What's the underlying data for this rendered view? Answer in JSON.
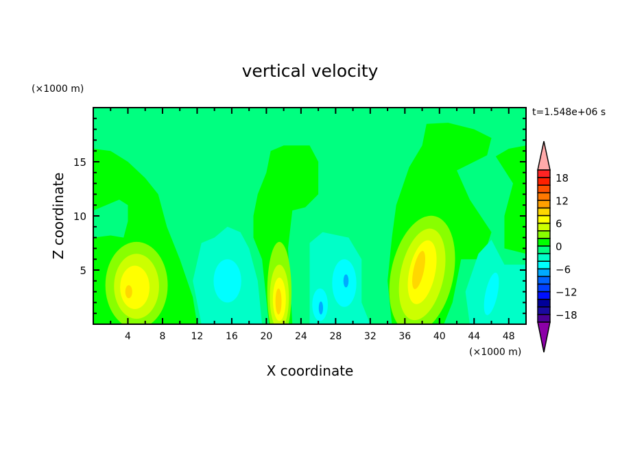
{
  "chart_data": {
    "type": "heatmap",
    "title": "vertical velocity",
    "xlabel": "X coordinate",
    "ylabel": "Z coordinate",
    "x_units": "(×1000 m)",
    "y_units": "(×1000 m)",
    "time_label": "t=1.548e+06 s",
    "xlim": [
      0,
      50
    ],
    "ylim": [
      0,
      20
    ],
    "x_ticks": [
      4,
      8,
      12,
      16,
      20,
      24,
      28,
      32,
      36,
      40,
      44,
      48
    ],
    "y_ticks": [
      5,
      10,
      15
    ],
    "background_level_color": "#00ff80",
    "colorbar": {
      "labels": [
        "18",
        "12",
        "6",
        "0",
        "-6",
        "-12",
        "-18"
      ],
      "over_color": "#ffaaaa",
      "under_color": "#8c00a8",
      "colors_top_to_bottom": [
        "#ff2424",
        "#ff2000",
        "#ff5000",
        "#ff7800",
        "#ffa000",
        "#ffd700",
        "#ffff00",
        "#ccff00",
        "#88ff00",
        "#00ff00",
        "#00ff80",
        "#00ffc8",
        "#00ffff",
        "#00aaff",
        "#0064ff",
        "#0040ff",
        "#0010ff",
        "#000099",
        "#1a0aa0",
        "#4b0096"
      ]
    },
    "regions": [
      {
        "color": "#00ff00",
        "pts": [
          [
            0,
            16.2
          ],
          [
            2,
            16
          ],
          [
            4,
            15
          ],
          [
            6,
            13.5
          ],
          [
            7.5,
            12
          ],
          [
            8.5,
            9
          ],
          [
            10,
            6
          ],
          [
            11.5,
            2.5
          ],
          [
            12,
            0
          ],
          [
            0,
            0
          ]
        ]
      },
      {
        "color": "#00ff80",
        "pts": [
          [
            0,
            8
          ],
          [
            2,
            8.2
          ],
          [
            3.5,
            8
          ],
          [
            4,
            9.5
          ],
          [
            4,
            11
          ],
          [
            3,
            11.5
          ],
          [
            1.5,
            11
          ],
          [
            0,
            10.5
          ]
        ]
      },
      {
        "color": "#00ff00",
        "pts": [
          [
            18.5,
            10
          ],
          [
            19,
            12
          ],
          [
            20,
            14
          ],
          [
            20.5,
            16
          ],
          [
            22,
            16.5
          ],
          [
            25,
            16.5
          ],
          [
            26,
            15
          ],
          [
            26,
            12
          ],
          [
            24.5,
            10.8
          ],
          [
            23,
            10.5
          ],
          [
            22.5,
            7
          ],
          [
            23,
            0
          ],
          [
            20.3,
            0
          ],
          [
            19.5,
            6
          ],
          [
            18.5,
            8
          ]
        ]
      },
      {
        "color": "#00ff00",
        "pts": [
          [
            34.5,
            8
          ],
          [
            35,
            11
          ],
          [
            36.5,
            14.5
          ],
          [
            38,
            16.5
          ],
          [
            38.5,
            18.5
          ],
          [
            41,
            18.6
          ],
          [
            44,
            18
          ],
          [
            46,
            17.2
          ],
          [
            45.5,
            15.6
          ],
          [
            44,
            15
          ],
          [
            42,
            14.2
          ],
          [
            43.5,
            11.5
          ],
          [
            46,
            8.5
          ],
          [
            45,
            6
          ],
          [
            42.5,
            6
          ],
          [
            41.5,
            2
          ],
          [
            40.5,
            0
          ],
          [
            34.5,
            0
          ],
          [
            34,
            4
          ]
        ]
      },
      {
        "color": "#00ff00",
        "pts": [
          [
            46.5,
            15.5
          ],
          [
            48,
            16.2
          ],
          [
            50,
            16.5
          ],
          [
            50,
            6.5
          ],
          [
            47.5,
            7
          ],
          [
            47.5,
            10
          ],
          [
            48.5,
            13
          ]
        ]
      },
      {
        "color": "#00ffc8",
        "pts": [
          [
            11.5,
            4
          ],
          [
            12.5,
            7.5
          ],
          [
            14,
            8
          ],
          [
            15.5,
            9
          ],
          [
            17,
            8.5
          ],
          [
            18,
            7
          ],
          [
            19,
            4
          ],
          [
            19.5,
            0
          ],
          [
            12.5,
            0
          ]
        ]
      },
      {
        "color": "#00ffc8",
        "pts": [
          [
            25,
            0
          ],
          [
            25,
            7.5
          ],
          [
            26.5,
            8.5
          ],
          [
            29.5,
            8
          ],
          [
            31,
            6
          ],
          [
            31,
            2
          ],
          [
            32,
            0
          ]
        ]
      },
      {
        "color": "#00ffc8",
        "pts": [
          [
            43,
            3
          ],
          [
            44.5,
            6.5
          ],
          [
            46,
            7.8
          ],
          [
            47.5,
            5.5
          ],
          [
            50,
            5.5
          ],
          [
            50,
            0
          ],
          [
            43.5,
            0
          ]
        ]
      }
    ],
    "blobs": [
      {
        "color": "#00ffff",
        "cx": 15.5,
        "cy": 4,
        "rx": 1.6,
        "ry": 2
      },
      {
        "color": "#00ffff",
        "cx": 29,
        "cy": 3.8,
        "rx": 1.4,
        "ry": 2.2
      },
      {
        "color": "#00ffff",
        "cx": 26.2,
        "cy": 1.8,
        "rx": 0.9,
        "ry": 1.5
      },
      {
        "color": "#00ffff",
        "cx": 46,
        "cy": 2.8,
        "rx": 0.7,
        "ry": 2
      },
      {
        "color": "#00aaff",
        "cx": 29.2,
        "cy": 4,
        "rx": 0.3,
        "ry": 0.6
      },
      {
        "color": "#00aaff",
        "cx": 26.3,
        "cy": 1.5,
        "rx": 0.25,
        "ry": 0.6
      },
      {
        "color": "#88ff00",
        "cx": 5,
        "cy": 3.6,
        "rx": 3.6,
        "ry": 4
      },
      {
        "color": "#ccff00",
        "cx": 5,
        "cy": 3.5,
        "rx": 2.6,
        "ry": 3
      },
      {
        "color": "#ffff00",
        "cx": 4.8,
        "cy": 3.4,
        "rx": 1.7,
        "ry": 2
      },
      {
        "color": "#ffd700",
        "cx": 4.1,
        "cy": 3,
        "rx": 0.4,
        "ry": 0.6
      },
      {
        "color": "#88ff00",
        "cx": 21.5,
        "cy": 3,
        "rx": 1.4,
        "ry": 4.6
      },
      {
        "color": "#ccff00",
        "cx": 21.5,
        "cy": 2.5,
        "rx": 1.1,
        "ry": 3
      },
      {
        "color": "#ffff00",
        "cx": 21.5,
        "cy": 2.3,
        "rx": 0.75,
        "ry": 2
      },
      {
        "color": "#ffd700",
        "cx": 21.4,
        "cy": 2.1,
        "rx": 0.35,
        "ry": 1.2
      },
      {
        "color": "#88ff00",
        "cx": 38,
        "cy": 4.6,
        "rx": 3.6,
        "ry": 5.5
      },
      {
        "color": "#ccff00",
        "cx": 38,
        "cy": 4.6,
        "rx": 2.5,
        "ry": 4.3
      },
      {
        "color": "#ffff00",
        "cx": 38,
        "cy": 4.8,
        "rx": 1.5,
        "ry": 3
      },
      {
        "color": "#ffd700",
        "cx": 37.6,
        "cy": 5,
        "rx": 0.6,
        "ry": 1.8
      }
    ]
  }
}
